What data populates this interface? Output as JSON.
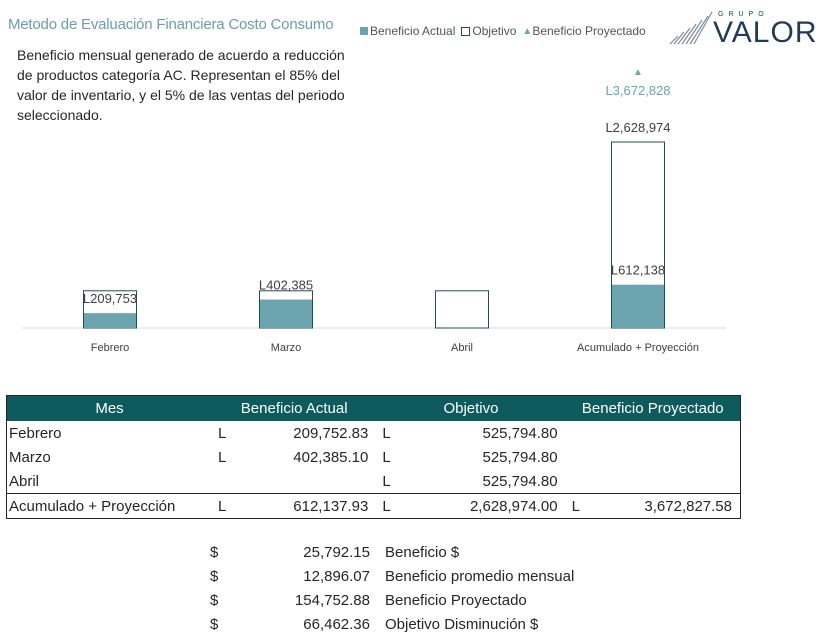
{
  "title": "Metodo de Evaluación Financiera Costo Consumo",
  "legend": {
    "actual": "Beneficio Actual",
    "objetivo": "Objetivo",
    "proyectado": "Beneficio Proyectado"
  },
  "logo": {
    "small": "GRUPO",
    "big": "VALOR"
  },
  "description": "Beneficio mensual generado de acuerdo a reducción de productos categoría AC. Representan el 85% del valor de inventario, y el 5% de las ventas del periodo seleccionado.",
  "colors": {
    "actual": "#6aa5b0",
    "objetivo_border": "#1f4e54",
    "header_bg": "#0e5b5d",
    "title": "#6b9eaa"
  },
  "chart_data": {
    "type": "bar",
    "categories": [
      "Febrero",
      "Marzo",
      "Abril",
      "Acumulado + Proyección"
    ],
    "series": [
      {
        "name": "Beneficio Actual",
        "values": [
          209752.83,
          402385.1,
          null,
          612137.93
        ]
      },
      {
        "name": "Objetivo",
        "values": [
          525794.8,
          525794.8,
          525794.8,
          2628974.0
        ]
      },
      {
        "name": "Beneficio Proyectado",
        "values": [
          null,
          null,
          null,
          3672827.58
        ]
      }
    ],
    "data_labels": {
      "actual": [
        "L209,753",
        "L402,385",
        "",
        "L612,138"
      ],
      "objetivo": [
        "",
        "",
        "",
        "L2,628,974"
      ],
      "proyectado": [
        "",
        "",
        "",
        "L3,672,828"
      ]
    },
    "ylim": [
      0,
      4300000
    ],
    "grid": false,
    "legend_position": "top"
  },
  "table": {
    "headers": [
      "Mes",
      "Beneficio Actual",
      "Objetivo",
      "Beneficio Proyectado"
    ],
    "rows": [
      {
        "mes": "Febrero",
        "cur1": "L",
        "actual": "209,752.83",
        "cur2": "L",
        "objetivo": "525,794.80",
        "cur3": "",
        "proyectado": ""
      },
      {
        "mes": "Marzo",
        "cur1": "L",
        "actual": "402,385.10",
        "cur2": "L",
        "objetivo": "525,794.80",
        "cur3": "",
        "proyectado": ""
      },
      {
        "mes": "Abril",
        "cur1": "",
        "actual": "",
        "cur2": "L",
        "objetivo": "525,794.80",
        "cur3": "",
        "proyectado": ""
      }
    ],
    "total": {
      "mes": "Acumulado + Proyección",
      "cur1": "L",
      "actual": "612,137.93",
      "cur2": "L",
      "objetivo": "2,628,974.00",
      "cur3": "L",
      "proyectado": "3,672,827.58"
    }
  },
  "summary": [
    {
      "sym": "$",
      "value": "25,792.15",
      "label": "Beneficio $"
    },
    {
      "sym": "$",
      "value": "12,896.07",
      "label": "Beneficio promedio mensual"
    },
    {
      "sym": "$",
      "value": "154,752.88",
      "label": "Beneficio Proyectado"
    },
    {
      "sym": "$",
      "value": "66,462.36",
      "label": "Objetivo Disminución $"
    }
  ]
}
